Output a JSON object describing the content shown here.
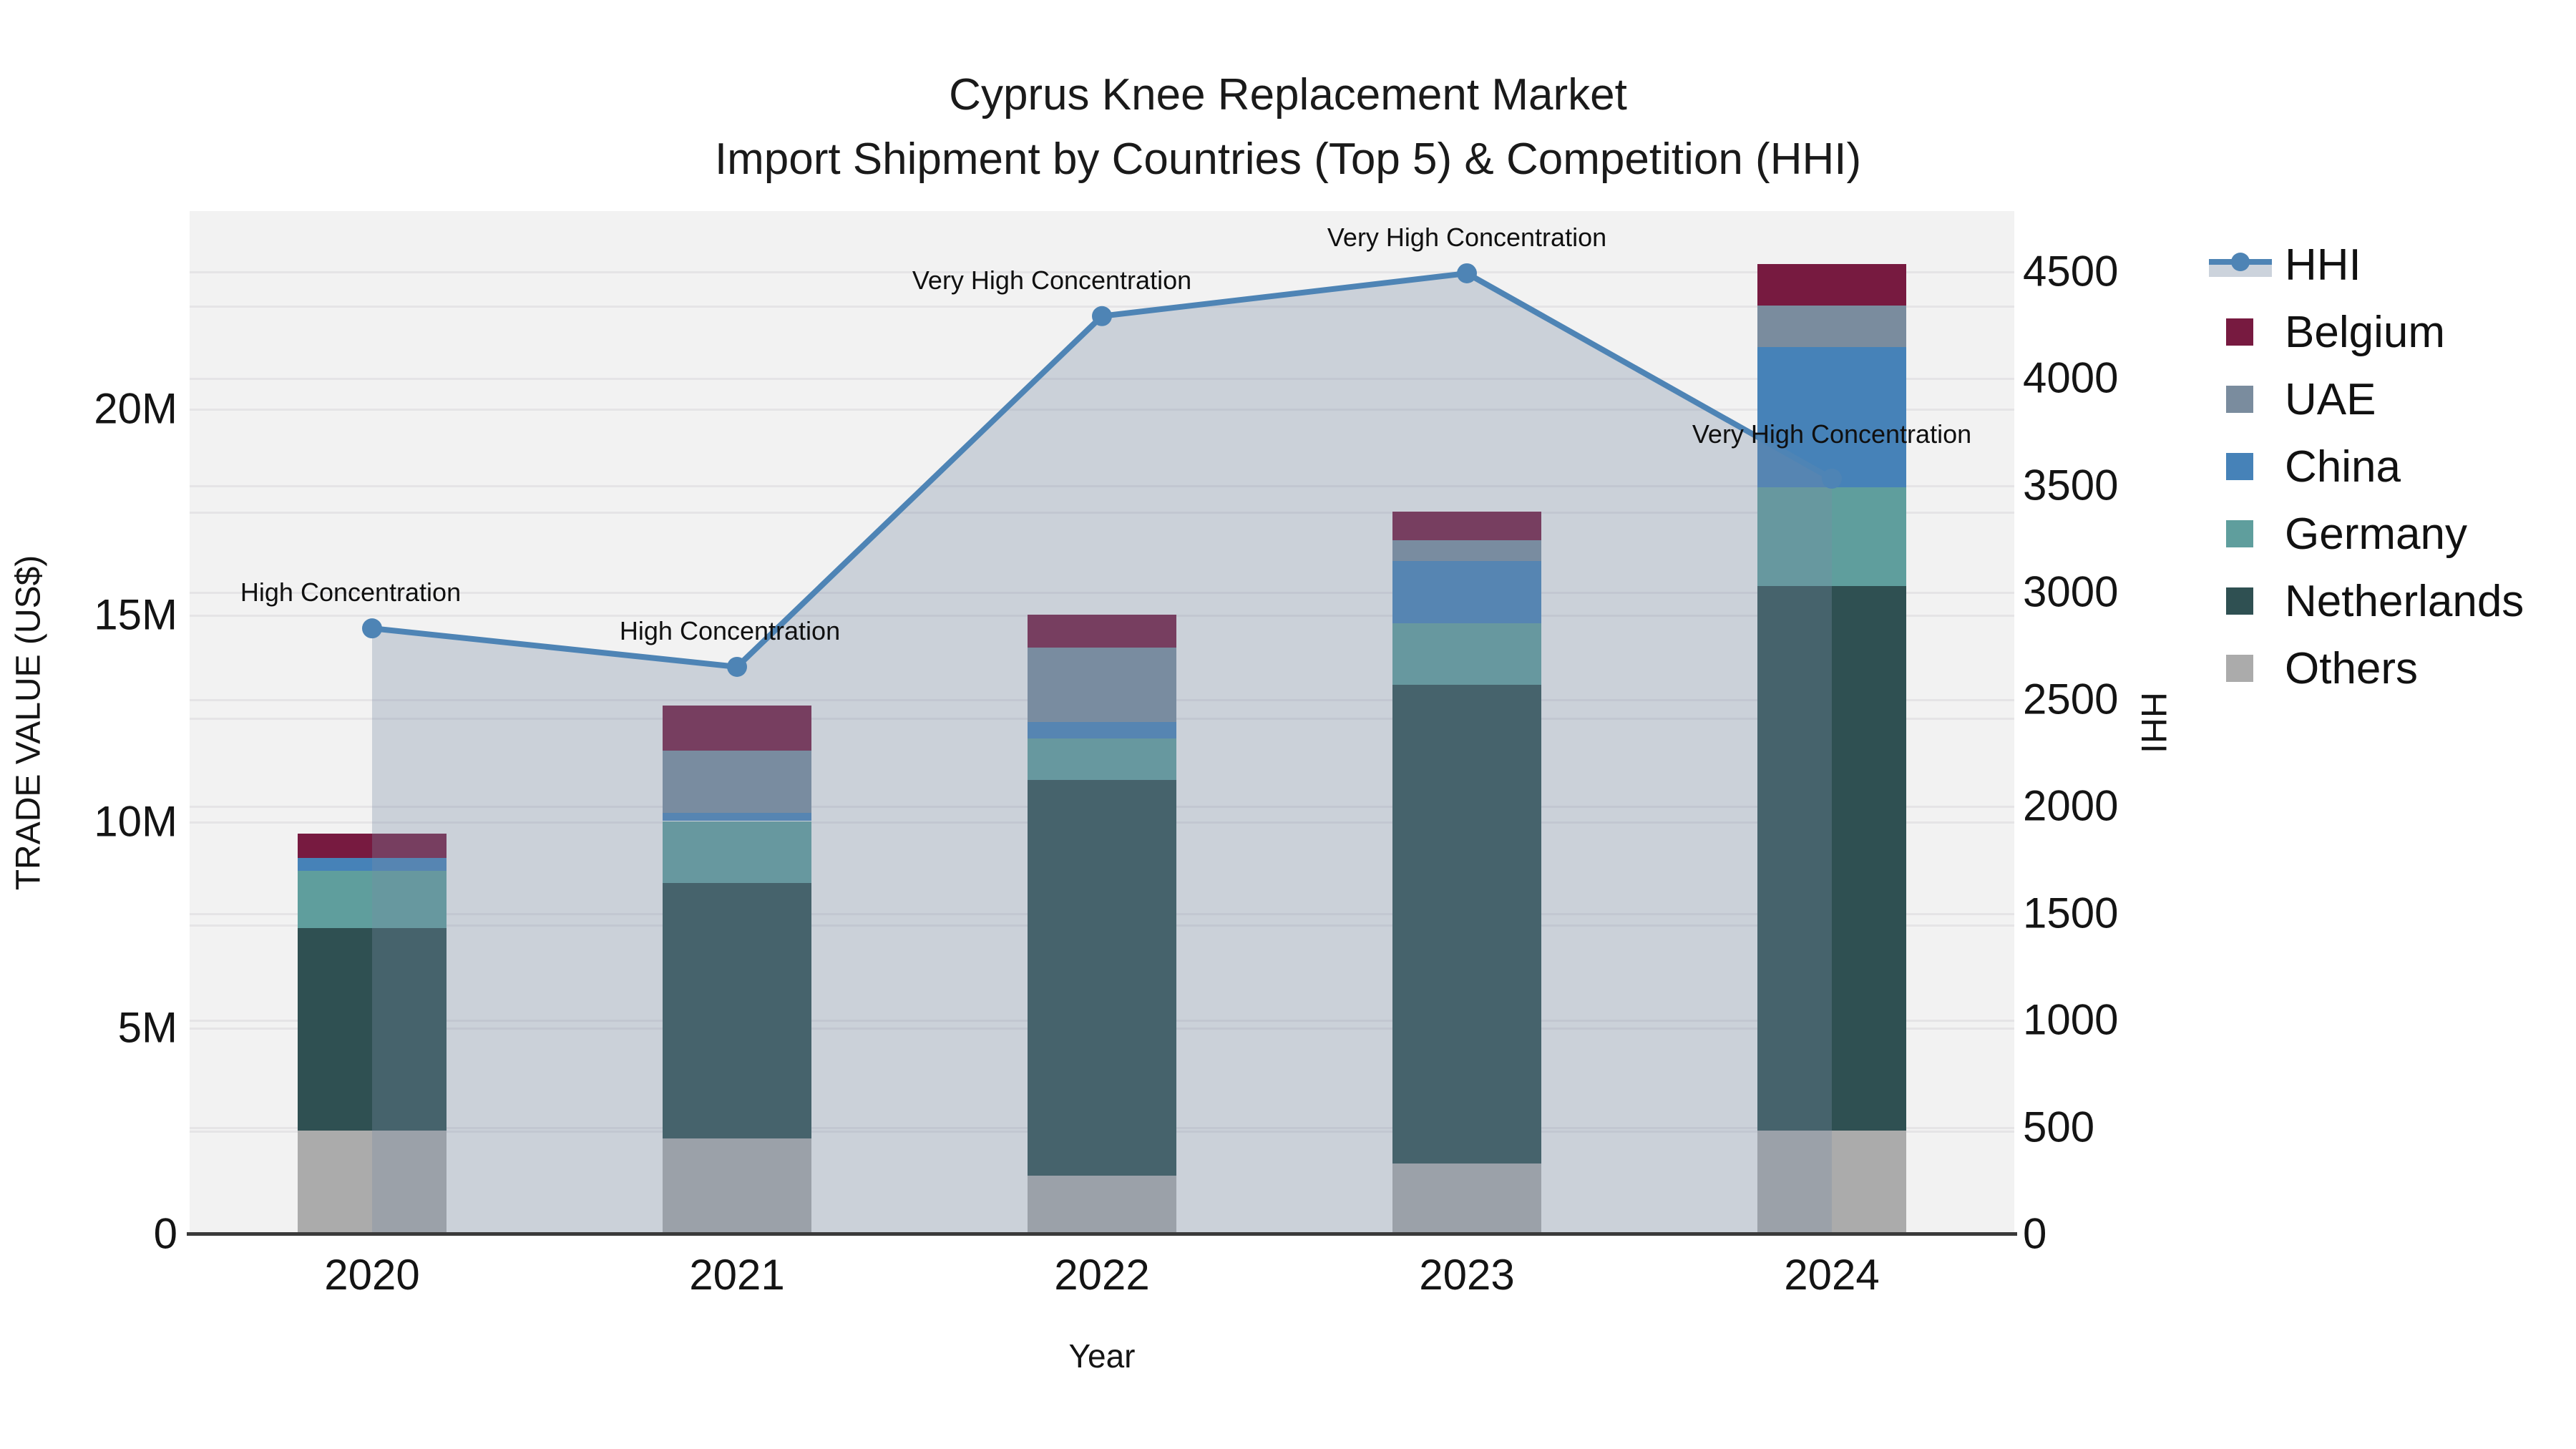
{
  "title": {
    "line1": "Cyprus Knee Replacement Market",
    "line2": "Import Shipment by Countries (Top 5) & Competition (HHI)"
  },
  "axes": {
    "left": {
      "label": "TRADE VALUE (US$)",
      "ticks": [
        {
          "label": "0",
          "value": 0
        },
        {
          "label": "5M",
          "value": 5
        },
        {
          "label": "10M",
          "value": 10
        },
        {
          "label": "15M",
          "value": 15
        },
        {
          "label": "20M",
          "value": 20
        }
      ]
    },
    "right": {
      "label": "HHI",
      "ticks": [
        {
          "label": "0",
          "value": 0
        },
        {
          "label": "500",
          "value": 500
        },
        {
          "label": "1000",
          "value": 1000
        },
        {
          "label": "1500",
          "value": 1500
        },
        {
          "label": "2000",
          "value": 2000
        },
        {
          "label": "2500",
          "value": 2500
        },
        {
          "label": "3000",
          "value": 3000
        },
        {
          "label": "3500",
          "value": 3500
        },
        {
          "label": "4000",
          "value": 4000
        },
        {
          "label": "4500",
          "value": 4500
        }
      ]
    },
    "x": {
      "label": "Year"
    }
  },
  "legend": {
    "items": [
      {
        "label": "HHI",
        "type": "line",
        "color": "#4e84b5"
      },
      {
        "label": "Belgium",
        "type": "swatch",
        "color": "#771a40"
      },
      {
        "label": "UAE",
        "type": "swatch",
        "color": "#7a8c9e"
      },
      {
        "label": "China",
        "type": "swatch",
        "color": "#4682b8"
      },
      {
        "label": "Germany",
        "type": "swatch",
        "color": "#5f9e9d"
      },
      {
        "label": "Netherlands",
        "type": "swatch",
        "color": "#2f5052"
      },
      {
        "label": "Others",
        "type": "swatch",
        "color": "#ababab"
      }
    ]
  },
  "chart_data": {
    "type": "bar+line",
    "title": "Cyprus Knee Replacement Market Import Shipment by Countries (Top 5) & Competition (HHI)",
    "xlabel": "Year",
    "ylabel_left": "TRADE VALUE (US$)",
    "ylabel_right": "HHI",
    "categories": [
      "2020",
      "2021",
      "2022",
      "2023",
      "2024"
    ],
    "bar_value_unit": "million US$",
    "ylim_left_millions": [
      0,
      24.8
    ],
    "ylim_right_hhi": [
      0,
      4780
    ],
    "grid": true,
    "legend_position": "right",
    "stack_order_bottom_to_top": [
      "Others",
      "Netherlands",
      "Germany",
      "China",
      "UAE",
      "Belgium"
    ],
    "series": [
      {
        "name": "Belgium",
        "color": "#771a40",
        "values": [
          0.6,
          1.1,
          0.8,
          0.7,
          1.0
        ]
      },
      {
        "name": "UAE",
        "color": "#7a8c9e",
        "values": [
          0.0,
          1.5,
          1.8,
          0.5,
          1.0
        ]
      },
      {
        "name": "China",
        "color": "#4682b8",
        "values": [
          0.3,
          0.2,
          0.4,
          1.5,
          3.4
        ]
      },
      {
        "name": "Germany",
        "color": "#5f9e9d",
        "values": [
          1.4,
          1.5,
          1.0,
          1.5,
          2.4
        ]
      },
      {
        "name": "Netherlands",
        "color": "#2f5052",
        "values": [
          4.9,
          6.2,
          9.6,
          11.6,
          13.2
        ]
      },
      {
        "name": "Others",
        "color": "#ababab",
        "values": [
          2.5,
          2.3,
          1.4,
          1.7,
          2.5
        ]
      }
    ],
    "bar_totals_millions": [
      9.7,
      12.8,
      15.0,
      17.5,
      23.5
    ],
    "line": {
      "name": "HHI",
      "color": "#4e84b5",
      "area_fill": "rgba(120,140,165,0.32)",
      "values": [
        2830,
        2650,
        4290,
        4490,
        3530
      ]
    },
    "annotations": [
      {
        "category": "2020",
        "text": "High Concentration"
      },
      {
        "category": "2021",
        "text": "High Concentration"
      },
      {
        "category": "2022",
        "text": "Very High Concentration"
      },
      {
        "category": "2023",
        "text": "Very High Concentration"
      },
      {
        "category": "2024",
        "text": "Very High Concentration"
      }
    ],
    "style": {
      "plot_background": "#f2f2f2",
      "grid_color": "#e5e4e6",
      "axis_line_color": "#3a3a3a"
    }
  }
}
